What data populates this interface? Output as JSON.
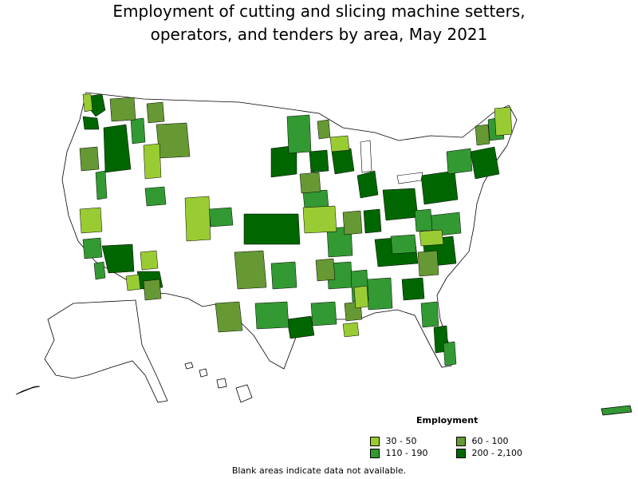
{
  "title": {
    "line1": "Employment of cutting and slicing machine setters,",
    "line2": "operators, and tenders by area, May 2021"
  },
  "legend": {
    "title": "Employment",
    "items": [
      {
        "label": "30 - 50",
        "color": "#99cc33"
      },
      {
        "label": "60 - 100",
        "color": "#669933"
      },
      {
        "label": "110 - 190",
        "color": "#339933"
      },
      {
        "label": "200 - 2,100",
        "color": "#006600"
      }
    ]
  },
  "footnote": "Blank areas indicate data not available.",
  "colors": {
    "no_data": "#ffffff",
    "outline": "#000000"
  }
}
